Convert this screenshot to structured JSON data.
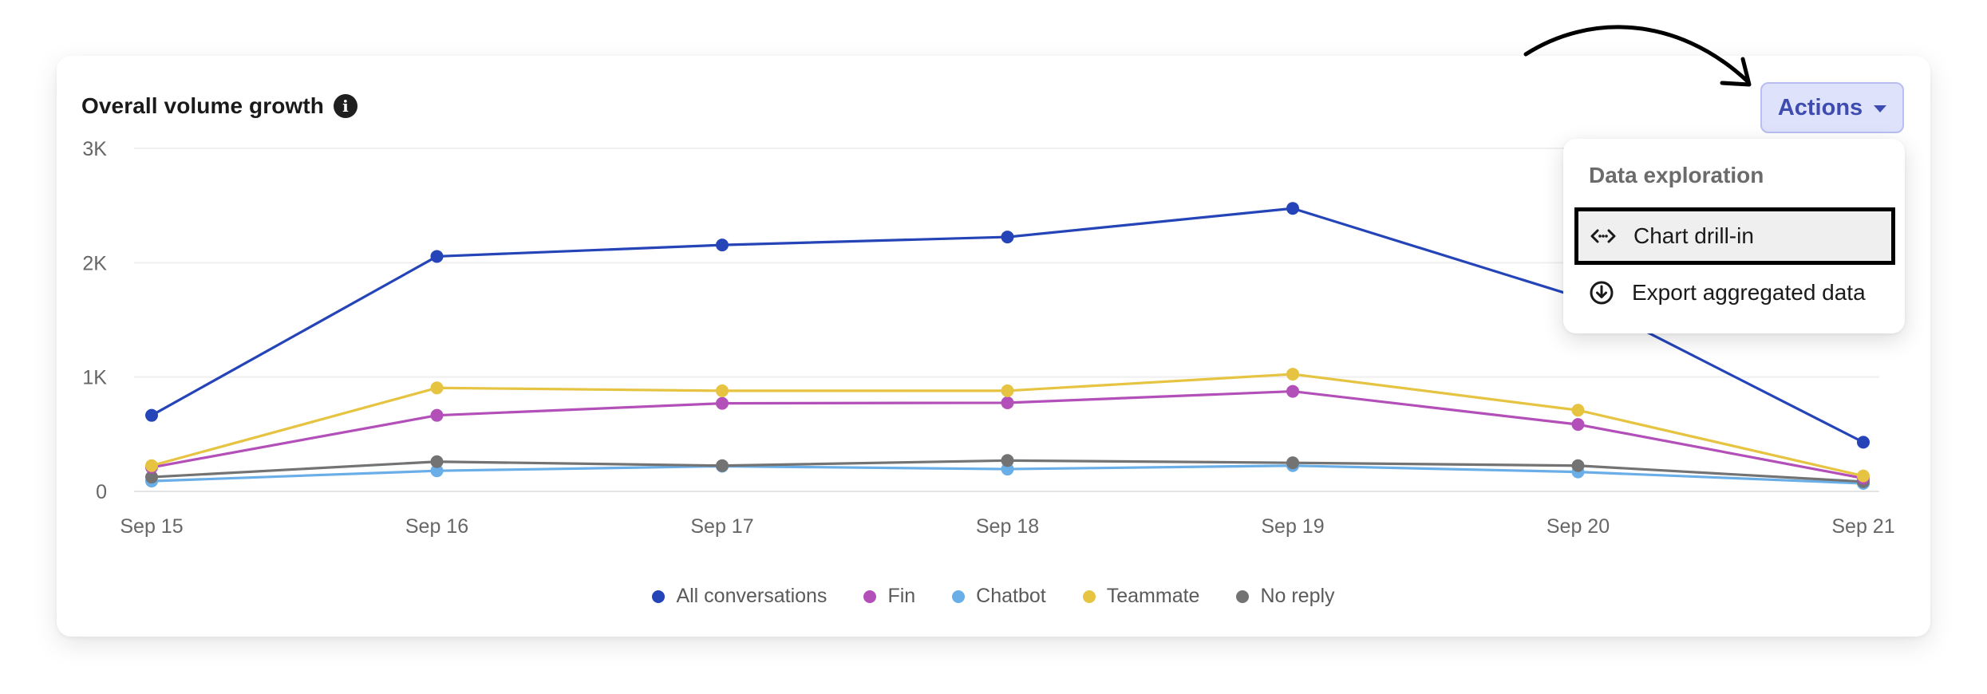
{
  "card": {
    "title": "Overall volume growth",
    "info_icon": "info-icon"
  },
  "actions": {
    "label": "Actions",
    "icon": "caret-down-icon",
    "color": "#3e4bb0",
    "background": "#dfe2fb"
  },
  "menu": {
    "header": "Data exploration",
    "items": [
      {
        "label": "Chart drill-in",
        "icon": "code-brackets-icon",
        "highlighted": true
      },
      {
        "label": "Export aggregated data",
        "icon": "download-circle-icon",
        "highlighted": false
      }
    ]
  },
  "annotation": {
    "icon": "curved-arrow-icon"
  },
  "chart_data": {
    "type": "line",
    "title": "Overall volume growth",
    "xlabel": "",
    "ylabel": "",
    "categories": [
      "Sep 15",
      "Sep 16",
      "Sep 17",
      "Sep 18",
      "Sep 19",
      "Sep 20",
      "Sep 21"
    ],
    "yticks": [
      {
        "value": 0,
        "label": "0"
      },
      {
        "value": 1000,
        "label": "1K"
      },
      {
        "value": 2000,
        "label": "2K"
      },
      {
        "value": 3000,
        "label": "3K"
      }
    ],
    "ylim": [
      0,
      3000
    ],
    "grid": true,
    "legend_position": "bottom-center",
    "series": [
      {
        "name": "All conversations",
        "color": "#2444b8",
        "values": [
          665,
          2055,
          2155,
          2225,
          2475,
          1700,
          430
        ]
      },
      {
        "name": "Fin",
        "color": "#b34fb8",
        "values": [
          210,
          665,
          770,
          775,
          875,
          585,
          115
        ]
      },
      {
        "name": "Chatbot",
        "color": "#6aaee8",
        "values": [
          90,
          180,
          220,
          195,
          225,
          170,
          70
        ]
      },
      {
        "name": "Teammate",
        "color": "#e6c442",
        "values": [
          225,
          905,
          880,
          880,
          1025,
          710,
          135
        ]
      },
      {
        "name": "No reply",
        "color": "#737373",
        "values": [
          125,
          260,
          225,
          270,
          250,
          225,
          85
        ]
      }
    ]
  }
}
